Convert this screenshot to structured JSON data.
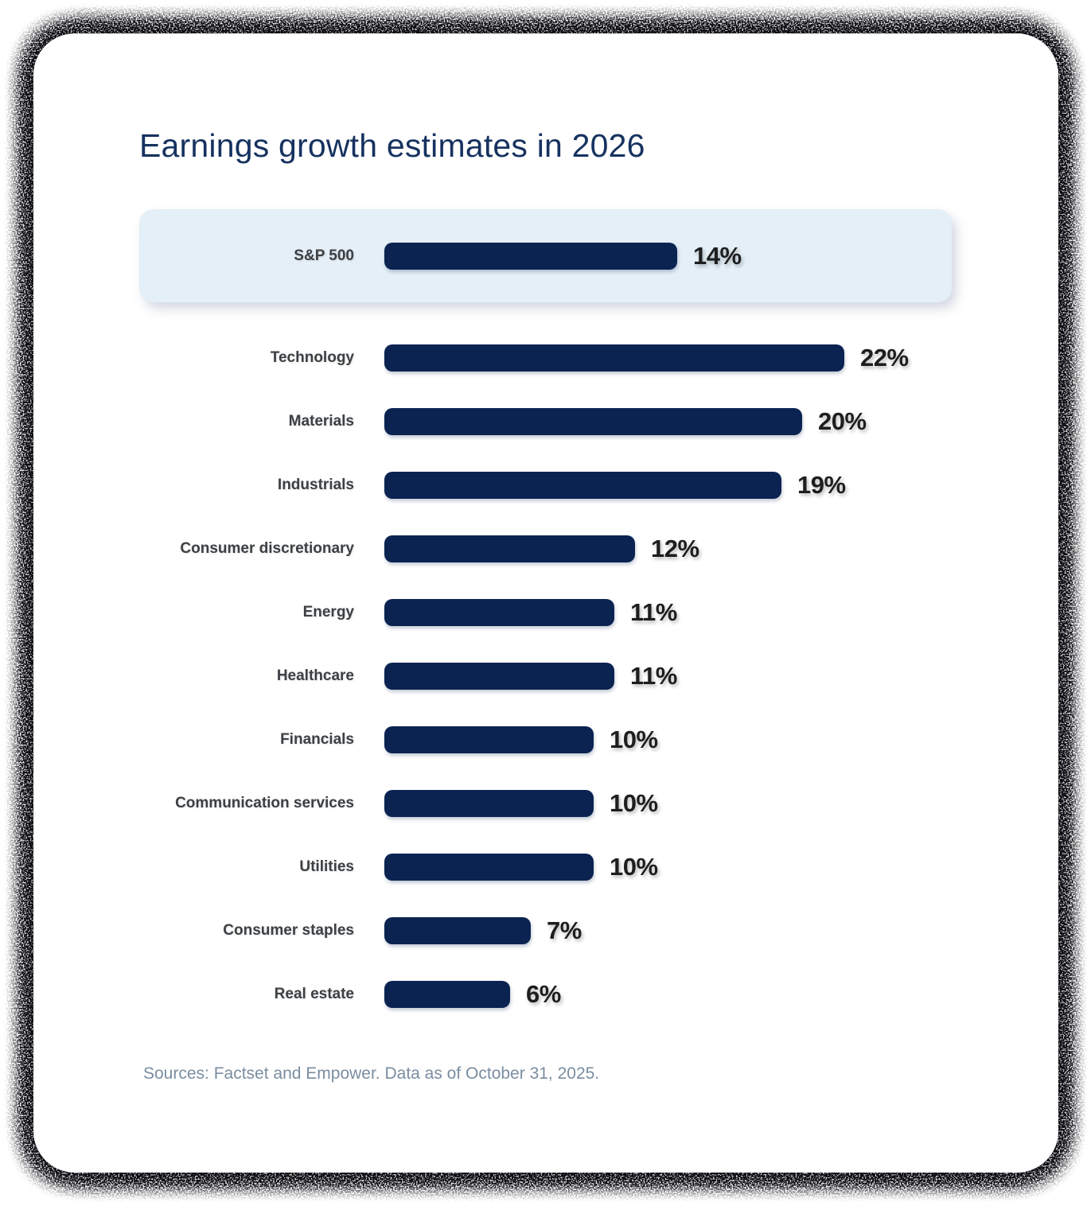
{
  "chart_data": {
    "type": "bar",
    "orientation": "horizontal",
    "title": "Earnings growth estimates in 2026",
    "xlim": [
      0,
      22
    ],
    "grid": false,
    "legend": "none",
    "highlight_row": {
      "label": "S&P 500",
      "value": 14,
      "value_label": "14%"
    },
    "categories": [
      "Technology",
      "Materials",
      "Industrials",
      "Consumer discretionary",
      "Energy",
      "Healthcare",
      "Financials",
      "Communication services",
      "Utilities",
      "Consumer staples",
      "Real estate"
    ],
    "values": [
      22,
      20,
      19,
      12,
      11,
      11,
      10,
      10,
      10,
      7,
      6
    ],
    "value_labels": [
      "22%",
      "20%",
      "19%",
      "12%",
      "11%",
      "11%",
      "10%",
      "10%",
      "10%",
      "7%",
      "6%"
    ],
    "source_note": "Sources: Factset and Empower. Data as of October 31, 2025.",
    "colors": {
      "bar": "#0A2351",
      "highlight_background": "#E4EFF7",
      "title_text": "#16325F",
      "category_text": "#3C4043",
      "value_text": "#1D1E20",
      "source_text": "#7A8DA0"
    }
  }
}
